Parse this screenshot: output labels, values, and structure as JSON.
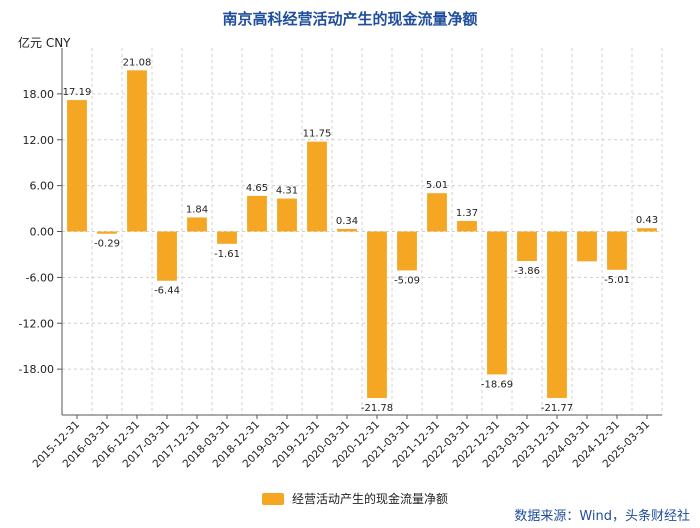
{
  "chart_data": {
    "type": "bar",
    "title": "南京高科经营活动产生的现金流量净额",
    "ylabel": "亿元  CNY",
    "ylim": [
      -24,
      24
    ],
    "yticks": [
      18,
      12,
      6,
      0,
      -6,
      -12,
      -18
    ],
    "ytick_labels": [
      "18.00",
      "12.00",
      "6.00",
      "0.00",
      "-6.00",
      "-12.00",
      "-18.00"
    ],
    "grid": true,
    "legend_position": "bottom",
    "colors": {
      "bar": "#f5a623",
      "title": "#1f4e9c",
      "grid": "#d0d0d0",
      "axis": "#555555"
    },
    "categories": [
      "2015-12-31",
      "2016-03-31",
      "2016-12-31",
      "2017-03-31",
      "2017-12-31",
      "2018-03-31",
      "2018-12-31",
      "2019-03-31",
      "2019-12-31",
      "2020-03-31",
      "2020-12-31",
      "2021-03-31",
      "2021-12-31",
      "2022-03-31",
      "2022-12-31",
      "2023-03-31",
      "2023-12-31",
      "2024-03-31",
      "2024-12-31",
      "2025-03-31"
    ],
    "series": [
      {
        "name": "经营活动产生的现金流量净额",
        "values": [
          17.19,
          -0.29,
          21.08,
          -6.44,
          1.84,
          -1.61,
          4.65,
          4.31,
          11.75,
          0.34,
          -21.78,
          -5.09,
          5.01,
          1.37,
          -18.69,
          -3.86,
          -21.77,
          -3.9,
          -5.01,
          0.43
        ],
        "data_labels": [
          "17.19",
          "-0.29",
          "21.08",
          "-6.44",
          "1.84",
          "-1.61",
          "4.65",
          "4.31",
          "11.75",
          "0.34",
          "-21.78",
          "-5.09",
          "5.01",
          "1.37",
          "-18.69",
          "-3.86",
          "-21.77",
          "",
          "-5.01",
          "0.43"
        ]
      }
    ]
  },
  "source_text": "数据来源：Wind，头条财经社"
}
